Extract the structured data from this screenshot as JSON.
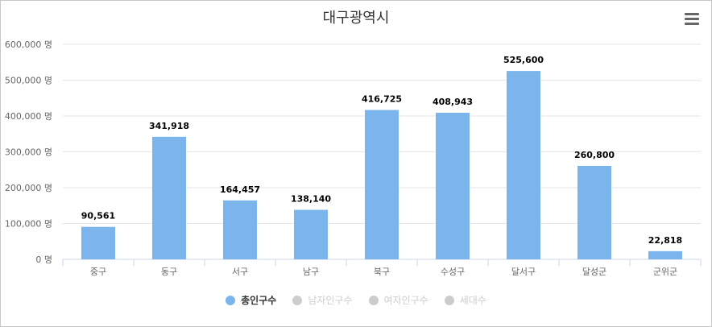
{
  "chart_data": {
    "type": "bar",
    "title": "대구광역시",
    "categories": [
      "중구",
      "동구",
      "서구",
      "남구",
      "북구",
      "수성구",
      "달서구",
      "달성군",
      "군위군"
    ],
    "series": [
      {
        "name": "총인구수",
        "values": [
          90561,
          341918,
          164457,
          138140,
          416725,
          408943,
          525600,
          260800,
          22818
        ],
        "visible": true
      },
      {
        "name": "남자인구수",
        "visible": false
      },
      {
        "name": "여자인구수",
        "visible": false
      },
      {
        "name": "세대수",
        "visible": false
      }
    ],
    "data_labels": [
      "90,561",
      "341,918",
      "164,457",
      "138,140",
      "416,725",
      "408,943",
      "525,600",
      "260,800",
      "22,818"
    ],
    "yticks": [
      "0 명",
      "100,000 명",
      "200,000 명",
      "300,000 명",
      "400,000 명",
      "500,000 명",
      "600,000 명"
    ],
    "ylim": [
      0,
      600000
    ],
    "grid": true,
    "legend_position": "bottom"
  },
  "colors": {
    "bar": "#7cb5ec",
    "grid": "#e6e6e6",
    "axis": "#ccd6eb",
    "inactive": "#cccccc"
  },
  "icons": {
    "menu": "hamburger-menu-icon"
  }
}
